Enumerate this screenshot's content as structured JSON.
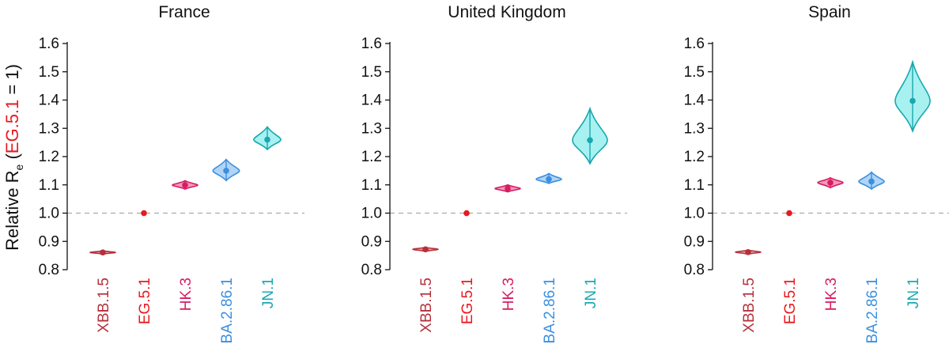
{
  "chart_data": {
    "type": "violin",
    "ylabel_parts": {
      "prefix": "Relative R",
      "subscript": "e",
      "open": " (",
      "highlight": "EG.5.1",
      "suffix": " = 1)"
    },
    "ylim": [
      0.8,
      1.6
    ],
    "yticks": [
      "0.8",
      "0.9",
      "1.0",
      "1.1",
      "1.2",
      "1.3",
      "1.4",
      "1.5",
      "1.6"
    ],
    "reference_line": 1.0,
    "categories": [
      "XBB.1.5",
      "EG.5.1",
      "HK.3",
      "BA.2.86.1",
      "JN.1"
    ],
    "colors": {
      "XBB.1.5": {
        "line": "#b5303a",
        "fill": "#e8a3a8"
      },
      "EG.5.1": {
        "line": "#e8191f",
        "fill": "#e8191f"
      },
      "HK.3": {
        "line": "#d81c62",
        "fill": "#f08fb5"
      },
      "BA.2.86.1": {
        "line": "#3a8fe0",
        "fill": "#a8cff5"
      },
      "JN.1": {
        "line": "#18a8b0",
        "fill": "#9ff0f0"
      },
      "label_XBB.1.5": "#b5303a",
      "label_EG.5.1": "#e8191f",
      "label_HK.3": "#d81c62",
      "label_BA.2.86.1": "#3a8fe0",
      "label_JN.1": "#18a8b0"
    },
    "panels": [
      {
        "title": "France",
        "series": [
          {
            "category": "XBB.1.5",
            "median": 0.861,
            "min": 0.855,
            "max": 0.867
          },
          {
            "category": "EG.5.1",
            "median": 1.0,
            "min": 1.0,
            "max": 1.0
          },
          {
            "category": "HK.3",
            "median": 1.099,
            "min": 1.085,
            "max": 1.115
          },
          {
            "category": "BA.2.86.1",
            "median": 1.15,
            "min": 1.115,
            "max": 1.19
          },
          {
            "category": "JN.1",
            "median": 1.26,
            "min": 1.225,
            "max": 1.305
          }
        ]
      },
      {
        "title": "United Kingdom",
        "series": [
          {
            "category": "XBB.1.5",
            "median": 0.872,
            "min": 0.865,
            "max": 0.879
          },
          {
            "category": "EG.5.1",
            "median": 1.0,
            "min": 1.0,
            "max": 1.0
          },
          {
            "category": "HK.3",
            "median": 1.087,
            "min": 1.075,
            "max": 1.1
          },
          {
            "category": "BA.2.86.1",
            "median": 1.12,
            "min": 1.105,
            "max": 1.14
          },
          {
            "category": "JN.1",
            "median": 1.258,
            "min": 1.175,
            "max": 1.37
          }
        ]
      },
      {
        "title": "Spain",
        "series": [
          {
            "category": "XBB.1.5",
            "median": 0.862,
            "min": 0.855,
            "max": 0.869
          },
          {
            "category": "EG.5.1",
            "median": 1.0,
            "min": 1.0,
            "max": 1.0
          },
          {
            "category": "HK.3",
            "median": 1.108,
            "min": 1.09,
            "max": 1.125
          },
          {
            "category": "BA.2.86.1",
            "median": 1.112,
            "min": 1.085,
            "max": 1.145
          },
          {
            "category": "JN.1",
            "median": 1.397,
            "min": 1.29,
            "max": 1.535
          }
        ]
      }
    ]
  }
}
